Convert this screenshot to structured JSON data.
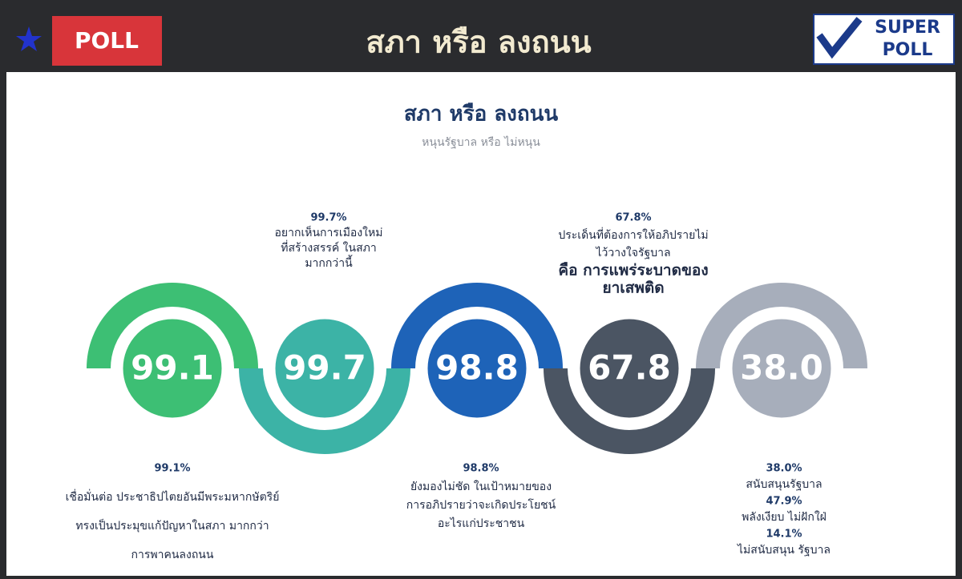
{
  "header": {
    "badge": "POLL",
    "title": "สภา หรือ ลงถนน",
    "logo_top": "SUPER",
    "logo_bottom": "POLL"
  },
  "panel": {
    "title": "สภา หรือ ลงถนน",
    "subtitle": "หนุนรัฐบาล หรือ ไม่หนุน"
  },
  "circles": [
    "99.1",
    "99.7",
    "98.8",
    "67.8",
    "38.0"
  ],
  "notes": [
    {
      "percent": "99.1%",
      "lines": [
        "เชื่อมั่นต่อ ประชาธิปไตยอันมีพระมหากษัตริย์",
        "ทรงเป็นประมุขแก้ปัญหาในสภา มากกว่า",
        "การพาคนลงถนน"
      ]
    },
    {
      "percent": "99.7%",
      "lines": [
        "อยากเห็นการเมืองใหม่",
        "ที่สร้างสรรค์ ในสภา",
        "มากกว่านี้"
      ]
    },
    {
      "percent": "98.8%",
      "lines": [
        "ยังมองไม่ชัด ในเป้าหมายของ",
        "การอภิปรายว่าจะเกิดประโยชน์",
        "อะไรแก่ประชาชน"
      ]
    },
    {
      "percent": "67.8%",
      "lines": [
        "ประเด็นที่ต้องการให้อภิปรายไม่",
        "ไว้วางใจรัฐบาล"
      ],
      "emphasis": [
        "คือ การแพร่ระบาดของ",
        "ยาเสพติด"
      ]
    },
    {
      "items": [
        {
          "percent": "38.0%",
          "label": "สนับสนุนรัฐบาล"
        },
        {
          "percent": "47.9%",
          "label": "พลังเงียบ ไม่ฝักใฝ่"
        },
        {
          "percent": "14.1%",
          "label": "ไม่สนับสนุน รัฐบาล"
        }
      ]
    }
  ]
}
